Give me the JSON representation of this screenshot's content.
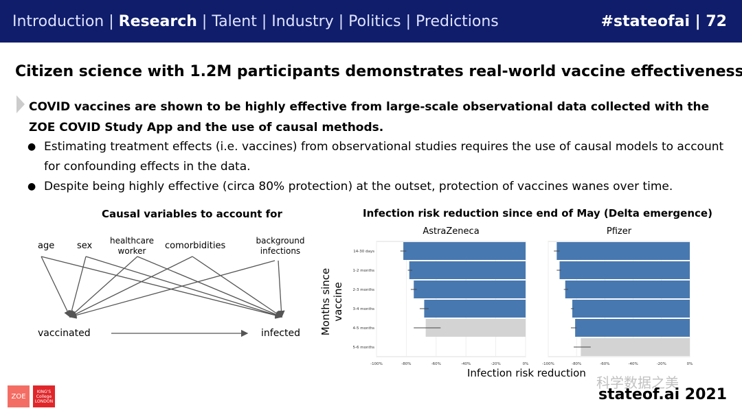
{
  "header": {
    "nav": [
      "Introduction",
      "Research",
      "Talent",
      "Industry",
      "Politics",
      "Predictions"
    ],
    "active": "Research",
    "separator": " | ",
    "slide_id": "#stateofai | 72"
  },
  "title": "Citizen science with 1.2M participants demonstrates real-world vaccine effectiveness",
  "lead": "COVID vaccines are shown to be highly effective from large-scale observational data collected with the ZOE COVID Study App and the use of causal methods.",
  "bullets": [
    "Estimating treatment effects (i.e. vaccines) from observational studies requires the use of causal models to account for confounding effects in the data.",
    "Despite being highly effective (circa 80% protection) at the outset, protection of vaccines wanes over time."
  ],
  "diagram": {
    "title": "Causal variables to account for",
    "variables": [
      "age",
      "sex",
      "healthcare worker",
      "comorbidities",
      "background infections"
    ],
    "treatment": "vaccinated",
    "outcome": "infected"
  },
  "chart_data": {
    "type": "bar",
    "title": "Infection risk reduction since end of May (Delta emergence)",
    "xlabel": "Infection risk reduction",
    "ylabel": "Months since vaccine",
    "xlim": [
      -100,
      0
    ],
    "xticks": [
      "-100%",
      "-80%",
      "-60%",
      "-40%",
      "-20%",
      "0%"
    ],
    "categories": [
      "14-30 days",
      "1-2 months",
      "2-3 months",
      "3-4 months",
      "4-5 months",
      "5-6 months"
    ],
    "colors": {
      "significant": "#4878b0",
      "not_significant": "#d3d3d3"
    },
    "series": [
      {
        "name": "AstraZeneca",
        "values": [
          -82,
          -78,
          -75,
          -68,
          -67,
          null
        ],
        "ci": [
          [
            -84,
            -80
          ],
          [
            -79,
            -76
          ],
          [
            -77,
            -73
          ],
          [
            -71,
            -65
          ],
          [
            -75,
            -57
          ],
          null
        ],
        "significant": [
          true,
          true,
          true,
          true,
          false,
          false
        ]
      },
      {
        "name": "Pfizer",
        "values": [
          -94,
          -92,
          -88,
          -83,
          -81,
          -77
        ],
        "ci": [
          [
            -96,
            -92
          ],
          [
            -94,
            -91
          ],
          [
            -89,
            -86
          ],
          [
            -84,
            -82
          ],
          [
            -84,
            -80
          ],
          [
            -82,
            -70
          ]
        ],
        "significant": [
          true,
          true,
          true,
          true,
          true,
          false
        ]
      }
    ]
  },
  "footer": {
    "brand": "stateof.ai 2021",
    "logo_zoe": "ZOE",
    "logo_kcl": "KING'S College LONDON",
    "watermark": "科学数据之美"
  }
}
